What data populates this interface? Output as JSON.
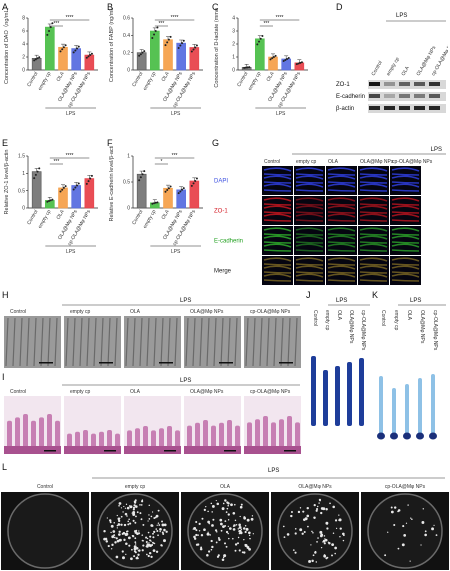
{
  "panel_labels": {
    "A": "A",
    "B": "B",
    "C": "C",
    "D": "D",
    "E": "E",
    "F": "F",
    "G": "G",
    "H": "H",
    "I": "I",
    "J": "J",
    "K": "K",
    "L": "L"
  },
  "groups": [
    "Control",
    "empty cp",
    "OLA",
    "OLA@Mφ NPs",
    "cp-OLA@Mφ NPs"
  ],
  "lps_label": "LPS",
  "colors": {
    "control": "#666666",
    "empty": "#4dbf4a",
    "ola": "#f5a14c",
    "mnp": "#5a6fe0",
    "cpmnp": "#e8434c"
  },
  "chart_data": [
    {
      "type": "bar",
      "panel": "A",
      "ylabel": "Concentration of DAO（ng/mL）",
      "ylim": [
        0,
        8
      ],
      "yticks": [
        0,
        2,
        4,
        6,
        8
      ],
      "categories": [
        "Control",
        "empty cp",
        "OLA",
        "OLA@Mφ NPs",
        "cp-OLA@Mφ NPs"
      ],
      "values": [
        1.8,
        6.6,
        3.5,
        3.3,
        2.3
      ],
      "significance": [
        "***",
        "****"
      ]
    },
    {
      "type": "bar",
      "panel": "B",
      "ylabel": "Concentration of FABP (ng/mL)",
      "ylim": [
        0,
        0.6
      ],
      "yticks": [
        0.0,
        0.2,
        0.4,
        0.6
      ],
      "categories": [
        "Control",
        "empty cp",
        "OLA",
        "OLA@Mφ NPs",
        "cp-OLA@Mφ NPs"
      ],
      "values": [
        0.2,
        0.45,
        0.35,
        0.31,
        0.26
      ],
      "significance": [
        "***",
        "****"
      ]
    },
    {
      "type": "bar",
      "panel": "C",
      "ylabel": "Concentration of D-lactate (mmol/L)",
      "ylim": [
        0,
        4
      ],
      "yticks": [
        0,
        1,
        2,
        3,
        4
      ],
      "categories": [
        "Control",
        "empty cp",
        "OLA",
        "OLA@Mφ NPs",
        "cp-OLA@Mφ NPs"
      ],
      "values": [
        0.2,
        2.4,
        1.0,
        0.85,
        0.55
      ],
      "significance": [
        "***",
        "****"
      ]
    },
    {
      "type": "bar",
      "panel": "E",
      "ylabel": "Relative ZO-1 level/β-actin",
      "ylim": [
        0,
        1.5
      ],
      "yticks": [
        0.0,
        0.5,
        1.0,
        1.5
      ],
      "categories": [
        "Control",
        "empty cp",
        "OLA",
        "OLA@Mφ NPs",
        "cp-OLA@Mφ NPs"
      ],
      "values": [
        1.05,
        0.22,
        0.58,
        0.65,
        0.85
      ],
      "significance": [
        "***",
        "****"
      ]
    },
    {
      "type": "bar",
      "panel": "F",
      "ylabel": "Relative E-cadherin level/β-actin",
      "ylim": [
        0,
        1.0
      ],
      "yticks": [
        0.0,
        0.5,
        1.0
      ],
      "categories": [
        "Control",
        "empty cp",
        "OLA",
        "OLA@Mφ NPs",
        "cp-OLA@Mφ NPs"
      ],
      "values": [
        0.65,
        0.1,
        0.38,
        0.35,
        0.52
      ],
      "significance": [
        "*",
        "***"
      ]
    }
  ],
  "western": {
    "rows": [
      "ZO-1",
      "E-cadherin",
      "β-actin"
    ],
    "header": "LPS"
  },
  "if_rows": [
    "DAPI",
    "ZO-1",
    "E-cadherin",
    "Merge"
  ],
  "if_cols": [
    "Control",
    "empty cp",
    "OLA",
    "OLA@Mφ NPs",
    "cp-OLA@Mφ NPs"
  ],
  "L_cols": [
    "Control",
    "empty cp",
    "OLA",
    "OLA@Mφ NPs",
    "cp-OLA@Mφ NPs"
  ]
}
